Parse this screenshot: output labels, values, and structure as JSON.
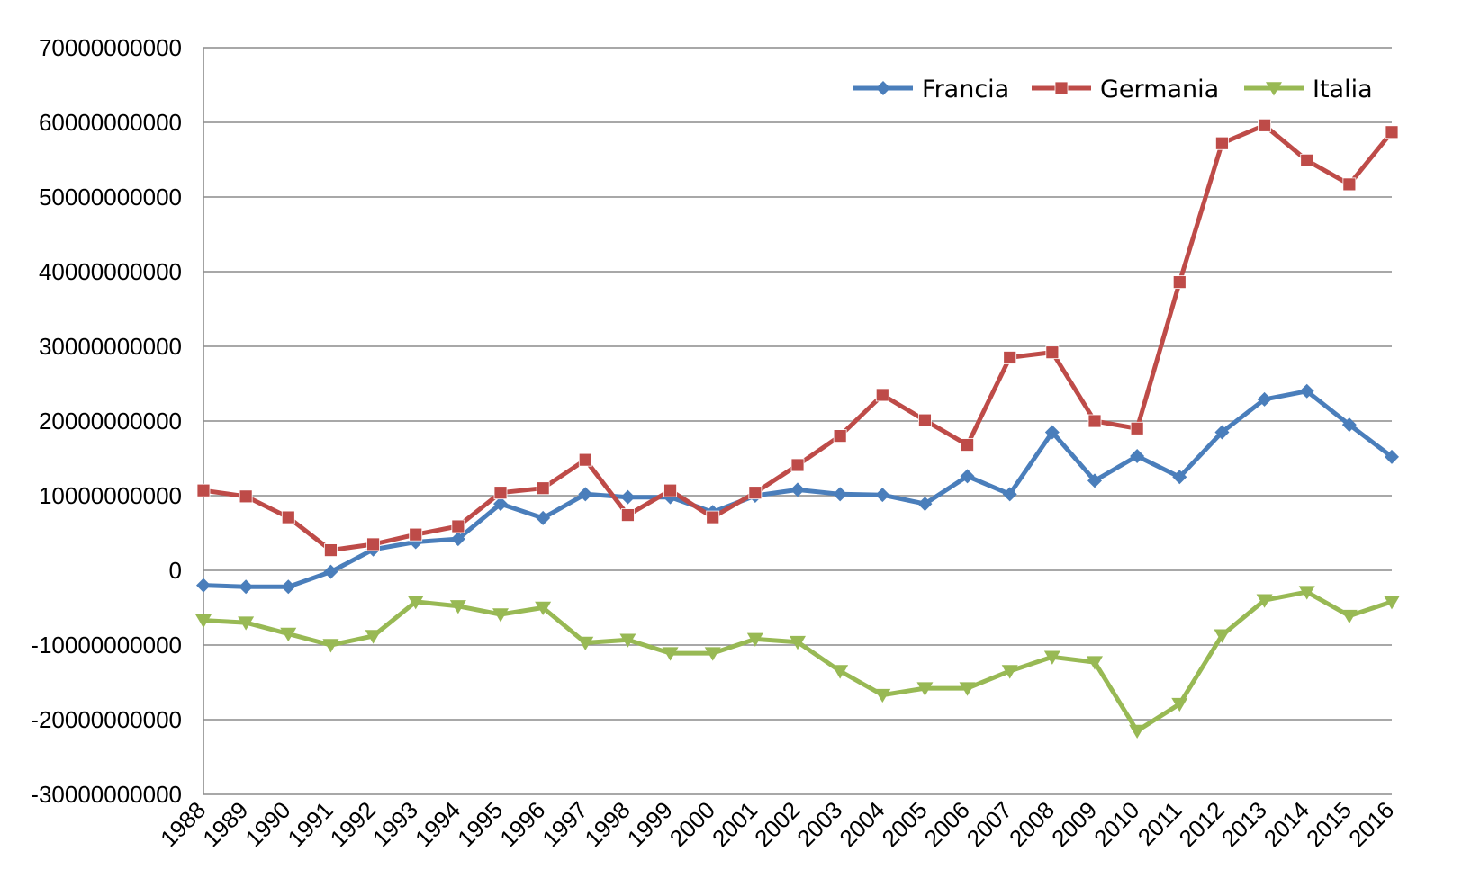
{
  "chart_data": {
    "type": "line",
    "title": "",
    "xlabel": "",
    "ylabel": "",
    "categories": [
      "1988",
      "1989",
      "1990",
      "1991",
      "1992",
      "1993",
      "1994",
      "1995",
      "1996",
      "1997",
      "1998",
      "1999",
      "2000",
      "2001",
      "2002",
      "2003",
      "2004",
      "2005",
      "2006",
      "2007",
      "2008",
      "2009",
      "2010",
      "2011",
      "2012",
      "2013",
      "2014",
      "2015",
      "2016"
    ],
    "ylim": [
      -30000000000,
      70000000000
    ],
    "yticks": [
      {
        "value": 70000000000,
        "label": "70000000000"
      },
      {
        "value": 60000000000,
        "label": "60000000000"
      },
      {
        "value": 50000000000,
        "label": "50000000000"
      },
      {
        "value": 40000000000,
        "label": "40000000000"
      },
      {
        "value": 30000000000,
        "label": "30000000000"
      },
      {
        "value": 20000000000,
        "label": "20000000000"
      },
      {
        "value": 10000000000,
        "label": "10000000000"
      },
      {
        "value": 0,
        "label": "0"
      },
      {
        "value": -10000000000,
        "label": "-10000000000"
      },
      {
        "value": -20000000000,
        "label": "-20000000000"
      },
      {
        "value": -30000000000,
        "label": "-30000000000"
      }
    ],
    "grid": true,
    "legend_position": "top-right",
    "series": [
      {
        "name": "Francia",
        "color": "#4a7ebb",
        "marker": "diamond",
        "values": [
          -2000000000,
          -2200000000,
          -2200000000,
          -200000000,
          2800000000,
          3800000000,
          4200000000,
          8900000000,
          7000000000,
          10200000000,
          9800000000,
          9800000000,
          7800000000,
          10000000000,
          10800000000,
          10200000000,
          10100000000,
          8900000000,
          12600000000,
          10200000000,
          18500000000,
          12000000000,
          15300000000,
          12500000000,
          18500000000,
          22900000000,
          24000000000,
          19500000000,
          15200000000
        ]
      },
      {
        "name": "Germania",
        "color": "#be4b48",
        "marker": "square",
        "values": [
          10700000000,
          9900000000,
          7100000000,
          2700000000,
          3500000000,
          4800000000,
          5900000000,
          10400000000,
          11000000000,
          14800000000,
          7400000000,
          10700000000,
          7100000000,
          10400000000,
          14100000000,
          18000000000,
          23500000000,
          20100000000,
          16800000000,
          28500000000,
          29200000000,
          20000000000,
          19000000000,
          38600000000,
          57200000000,
          59600000000,
          54900000000,
          51700000000,
          58700000000
        ]
      },
      {
        "name": "Italia",
        "color": "#98b954",
        "marker": "triangle-down",
        "values": [
          -6700000000,
          -7000000000,
          -8500000000,
          -10000000000,
          -8800000000,
          -4200000000,
          -4800000000,
          -5900000000,
          -5000000000,
          -9700000000,
          -9300000000,
          -11100000000,
          -11100000000,
          -9200000000,
          -9600000000,
          -13500000000,
          -16700000000,
          -15800000000,
          -15800000000,
          -13500000000,
          -11600000000,
          -12300000000,
          -21500000000,
          -17900000000,
          -8700000000,
          -4000000000,
          -2900000000,
          -6100000000,
          -4200000000
        ]
      }
    ]
  }
}
